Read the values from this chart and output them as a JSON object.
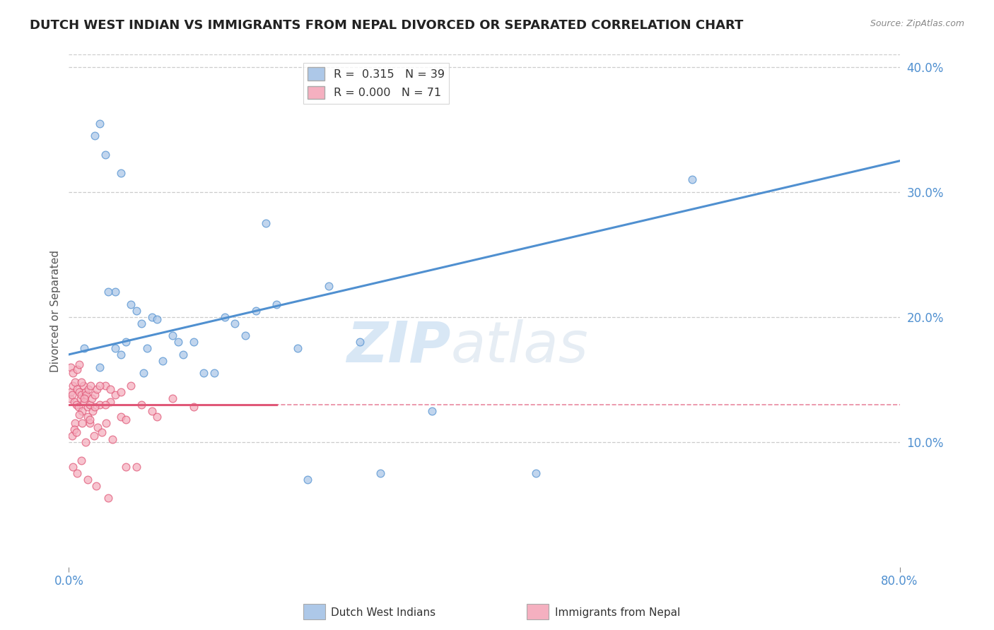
{
  "title": "DUTCH WEST INDIAN VS IMMIGRANTS FROM NEPAL DIVORCED OR SEPARATED CORRELATION CHART",
  "source_text": "Source: ZipAtlas.com",
  "ylabel": "Divorced or Separated",
  "x_min": 0.0,
  "x_max": 80.0,
  "y_min": 0.0,
  "y_max": 41.0,
  "y_ticks": [
    10.0,
    20.0,
    30.0,
    40.0
  ],
  "blue_R": 0.315,
  "blue_N": 39,
  "pink_R": 0.0,
  "pink_N": 71,
  "blue_color": "#adc8e8",
  "pink_color": "#f5b0c0",
  "blue_line_color": "#5090d0",
  "pink_line_color": "#e05878",
  "dashed_line_y": 13.0,
  "legend_label_blue": "Dutch West Indians",
  "legend_label_pink": "Immigrants from Nepal",
  "watermark_zip": "ZIP",
  "watermark_atlas": "atlas",
  "blue_trend_x0": 0.0,
  "blue_trend_y0": 17.0,
  "blue_trend_x1": 80.0,
  "blue_trend_y1": 32.5,
  "pink_trend_x0": 0.0,
  "pink_trend_y0": 13.0,
  "pink_trend_x1": 20.0,
  "pink_trend_y1": 13.0,
  "blue_dots_x": [
    1.5,
    2.5,
    3.0,
    3.5,
    4.5,
    5.0,
    6.0,
    7.0,
    8.0,
    10.0,
    12.0,
    15.0,
    20.0,
    60.0,
    5.5,
    7.5,
    9.0,
    11.0,
    16.0,
    18.0,
    28.0,
    4.5,
    6.5,
    8.5,
    10.5,
    14.0,
    17.0,
    45.0,
    3.8,
    7.2,
    19.0,
    25.0,
    3.0,
    5.0,
    22.0,
    30.0,
    13.0,
    23.0,
    35.0
  ],
  "blue_dots_y": [
    17.5,
    34.5,
    35.5,
    33.0,
    17.5,
    31.5,
    21.0,
    19.5,
    20.0,
    18.5,
    18.0,
    20.0,
    21.0,
    31.0,
    18.0,
    17.5,
    16.5,
    17.0,
    19.5,
    20.5,
    18.0,
    22.0,
    20.5,
    19.8,
    18.0,
    15.5,
    18.5,
    7.5,
    22.0,
    15.5,
    27.5,
    22.5,
    16.0,
    17.0,
    17.5,
    7.5,
    15.5,
    7.0,
    12.5
  ],
  "pink_dots_x": [
    0.1,
    0.2,
    0.3,
    0.4,
    0.5,
    0.6,
    0.7,
    0.8,
    0.9,
    1.0,
    1.1,
    1.2,
    1.3,
    1.4,
    1.5,
    1.6,
    1.7,
    1.8,
    1.9,
    2.0,
    2.1,
    2.2,
    2.3,
    2.5,
    2.7,
    3.0,
    3.5,
    4.0,
    4.5,
    5.0,
    0.2,
    0.4,
    0.6,
    0.8,
    1.0,
    1.2,
    1.5,
    1.8,
    2.0,
    2.5,
    3.0,
    3.5,
    4.0,
    5.0,
    6.0,
    7.0,
    8.0,
    10.0,
    12.0,
    0.3,
    0.5,
    0.7,
    1.0,
    1.3,
    1.6,
    2.0,
    2.4,
    2.8,
    3.2,
    3.6,
    4.2,
    5.5,
    6.5,
    8.5,
    0.4,
    0.8,
    1.2,
    1.8,
    2.6,
    3.8,
    5.5
  ],
  "pink_dots_y": [
    13.5,
    14.0,
    13.8,
    14.5,
    13.2,
    14.8,
    13.0,
    14.2,
    12.8,
    14.0,
    13.5,
    13.8,
    12.5,
    14.5,
    13.2,
    14.0,
    13.8,
    12.8,
    14.2,
    13.0,
    14.5,
    13.5,
    12.5,
    13.8,
    14.2,
    13.0,
    14.5,
    13.2,
    13.8,
    14.0,
    16.0,
    15.5,
    11.5,
    15.8,
    16.2,
    14.8,
    13.5,
    12.0,
    11.5,
    12.8,
    14.5,
    13.0,
    14.2,
    12.0,
    14.5,
    13.0,
    12.5,
    13.5,
    12.8,
    10.5,
    11.0,
    10.8,
    12.2,
    11.5,
    10.0,
    11.8,
    10.5,
    11.2,
    10.8,
    11.5,
    10.2,
    11.8,
    8.0,
    12.0,
    8.0,
    7.5,
    8.5,
    7.0,
    6.5,
    5.5,
    8.0
  ]
}
